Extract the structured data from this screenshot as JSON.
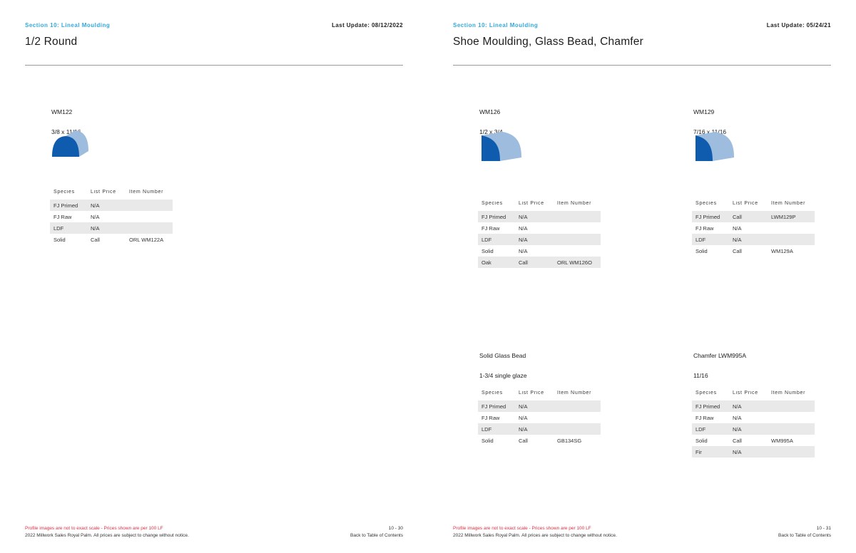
{
  "colors": {
    "section_blue": "#35a8dc",
    "footer_red": "#e62e40",
    "profile_dark_blue": "#0f5cae",
    "profile_light_blue": "#9dbcde",
    "row_shade_gray": "#e9e9e9"
  },
  "pages": [
    {
      "section_label": "Section 10: Lineal Moulding",
      "last_update": "Last Update: 08/12/2022",
      "title": "1/2 Round",
      "footer_red": "Profile images are not to exact scale   -   Prices shown are per 100 LF",
      "footer_black": "2022 Millwork Sales Royal Palm. All prices are subject to change without notice.",
      "page_number": "10 - 30",
      "back_link": "Back to Table of Contents",
      "products": [
        {
          "code": "WM122",
          "size": "3/8 x 11/16",
          "profile_shape": "half-round",
          "table": {
            "headers": [
              "Species",
              "List Price",
              "Item Number"
            ],
            "rows": [
              [
                "FJ Primed",
                "N/A",
                ""
              ],
              [
                "FJ Raw",
                "N/A",
                ""
              ],
              [
                "LDF",
                "N/A",
                ""
              ],
              [
                "Solid",
                "Call",
                "ORL WM122A"
              ]
            ]
          }
        }
      ]
    },
    {
      "section_label": "Section 10: Lineal Moulding",
      "last_update": "Last Update: 05/24/21",
      "title": "Shoe Moulding, Glass Bead, Chamfer",
      "footer_red": "Profile images are not to exact scale   -   Prices shown are per 100 LF",
      "footer_black": "2022 Millwork Sales Royal Palm. All prices are subject to change without notice.",
      "page_number": "10 - 31",
      "back_link": "Back to Table of Contents",
      "products": [
        {
          "code": "WM126",
          "size": "1/2 x 3/4",
          "profile_shape": "shoe",
          "table": {
            "headers": [
              "Species",
              "List Price",
              "Item Number"
            ],
            "rows": [
              [
                "FJ Primed",
                "N/A",
                ""
              ],
              [
                "FJ Raw",
                "N/A",
                ""
              ],
              [
                "LDF",
                "N/A",
                ""
              ],
              [
                "Solid",
                "N/A",
                ""
              ],
              [
                "Oak",
                "Call",
                "ORL WM126O"
              ]
            ]
          }
        },
        {
          "code": "WM129",
          "size": "7/16 x 11/16",
          "profile_shape": "shoe",
          "table": {
            "headers": [
              "Species",
              "List Price",
              "Item Number"
            ],
            "rows": [
              [
                "FJ Primed",
                "Call",
                "LWM129P"
              ],
              [
                "FJ Raw",
                "N/A",
                ""
              ],
              [
                "LDF",
                "N/A",
                ""
              ],
              [
                "Solid",
                "Call",
                "WM129A"
              ]
            ]
          }
        },
        {
          "code": "Solid Glass Bead",
          "size": "1-3/4 single glaze",
          "profile_shape": "none",
          "table": {
            "headers": [
              "Species",
              "List Price",
              "Item Number"
            ],
            "rows": [
              [
                "FJ Primed",
                "N/A",
                ""
              ],
              [
                "FJ Raw",
                "N/A",
                ""
              ],
              [
                "LDF",
                "N/A",
                ""
              ],
              [
                "Solid",
                "Call",
                "GB134SG"
              ]
            ]
          }
        },
        {
          "code": "Chamfer LWM995A",
          "size": "11/16",
          "profile_shape": "none",
          "table": {
            "headers": [
              "Species",
              "List Price",
              "Item Number"
            ],
            "rows": [
              [
                "FJ Primed",
                "N/A",
                ""
              ],
              [
                "FJ Raw",
                "N/A",
                ""
              ],
              [
                "LDF",
                "N/A",
                ""
              ],
              [
                "Solid",
                "Call",
                "WM995A"
              ],
              [
                "Fir",
                "N/A",
                ""
              ]
            ]
          }
        }
      ]
    }
  ]
}
